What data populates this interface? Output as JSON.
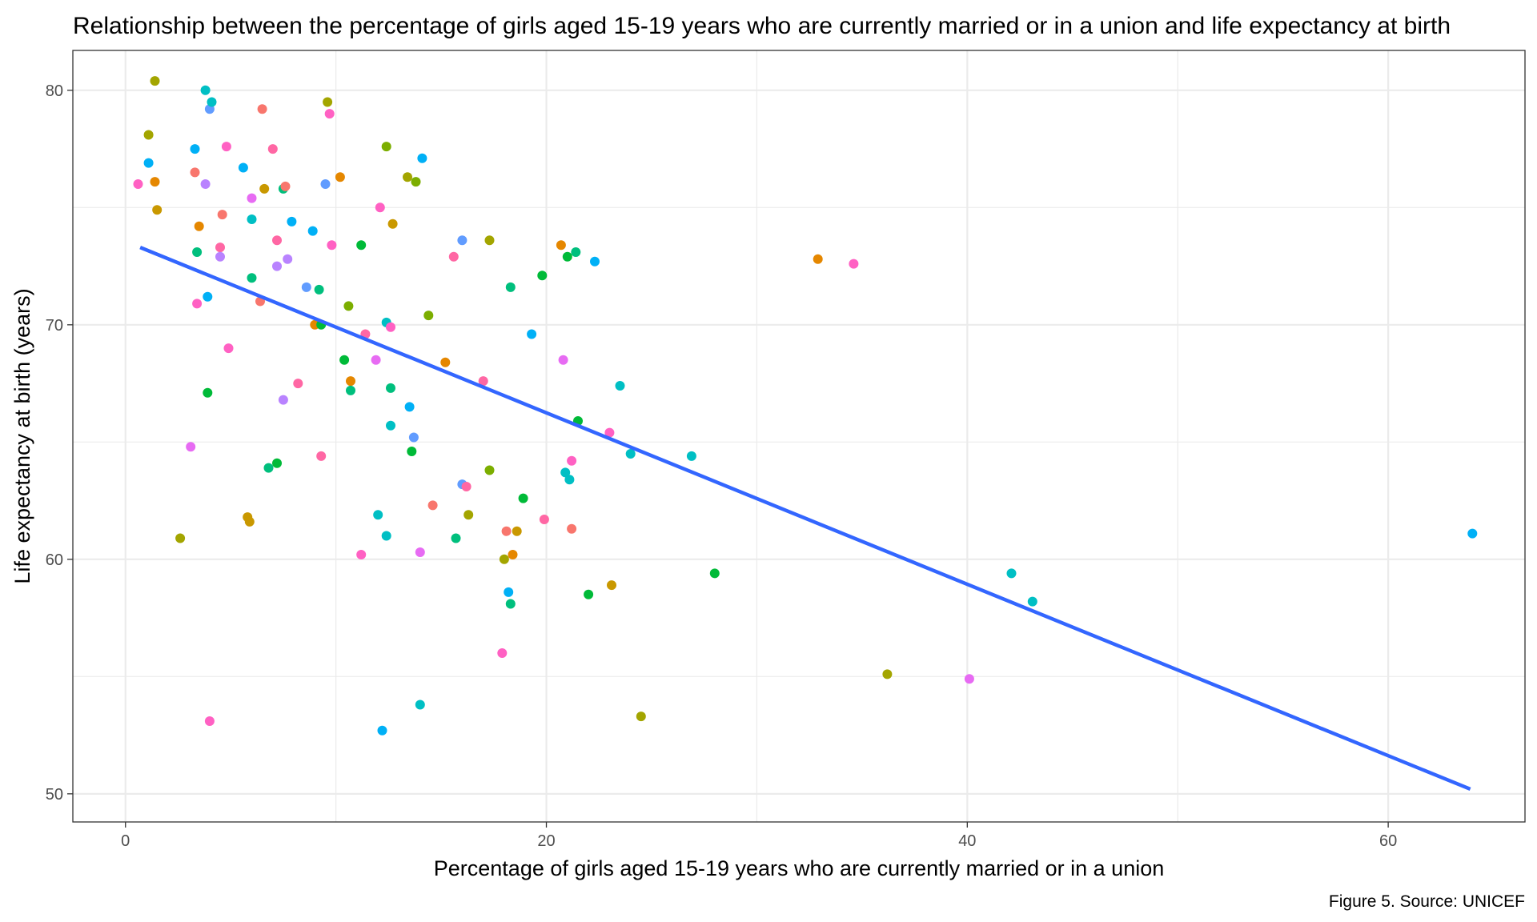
{
  "chart_data": {
    "type": "scatter",
    "title": "Relationship between the percentage of girls aged 15-19 years who are currently married or in a union and life expectancy at birth",
    "xlabel": "Percentage of girls aged 15-19 years who are currently married or in a union",
    "ylabel": "Life expectancy at birth (years)",
    "caption": "Figure 5. Source: UNICEF",
    "xlim": [
      -2.5,
      66.5
    ],
    "ylim": [
      48.8,
      81.7
    ],
    "x_ticks": [
      0,
      20,
      40,
      60
    ],
    "y_ticks": [
      50,
      60,
      70,
      80
    ],
    "x_tick_labels": [
      "0",
      "20",
      "40",
      "60"
    ],
    "y_tick_labels": [
      "50",
      "60",
      "70",
      "80"
    ],
    "grid": true,
    "legend": "none",
    "trend_line": {
      "color": "#3366FF",
      "x": [
        0.7,
        63.9
      ],
      "y": [
        73.3,
        50.2
      ]
    },
    "points": [
      {
        "x": 0.6,
        "y": 76.0,
        "c": "#FF61C3"
      },
      {
        "x": 1.1,
        "y": 78.1,
        "c": "#A3A500"
      },
      {
        "x": 1.1,
        "y": 76.9,
        "c": "#00B0F6"
      },
      {
        "x": 1.4,
        "y": 80.4,
        "c": "#A3A500"
      },
      {
        "x": 1.4,
        "y": 76.1,
        "c": "#E58700"
      },
      {
        "x": 1.5,
        "y": 74.9,
        "c": "#C99800"
      },
      {
        "x": 2.6,
        "y": 60.9,
        "c": "#A3A500"
      },
      {
        "x": 3.1,
        "y": 64.8,
        "c": "#E76BF3"
      },
      {
        "x": 3.3,
        "y": 77.5,
        "c": "#00B0F6"
      },
      {
        "x": 3.3,
        "y": 76.5,
        "c": "#F8766D"
      },
      {
        "x": 3.4,
        "y": 73.1,
        "c": "#00BF7D"
      },
      {
        "x": 3.4,
        "y": 70.9,
        "c": "#FF61C3"
      },
      {
        "x": 3.5,
        "y": 74.2,
        "c": "#E58700"
      },
      {
        "x": 3.8,
        "y": 80.0,
        "c": "#00BFC4"
      },
      {
        "x": 3.8,
        "y": 76.0,
        "c": "#B983FF"
      },
      {
        "x": 3.9,
        "y": 71.2,
        "c": "#00B0F6"
      },
      {
        "x": 3.9,
        "y": 67.1,
        "c": "#00BA38"
      },
      {
        "x": 4.0,
        "y": 79.2,
        "c": "#619CFF"
      },
      {
        "x": 4.0,
        "y": 53.1,
        "c": "#FF61C3"
      },
      {
        "x": 4.1,
        "y": 79.5,
        "c": "#00BFC4"
      },
      {
        "x": 4.5,
        "y": 73.3,
        "c": "#FF67A4"
      },
      {
        "x": 4.5,
        "y": 72.9,
        "c": "#B983FF"
      },
      {
        "x": 4.6,
        "y": 74.7,
        "c": "#F8766D"
      },
      {
        "x": 4.8,
        "y": 77.6,
        "c": "#FF61C3"
      },
      {
        "x": 4.9,
        "y": 69.0,
        "c": "#FF61C3"
      },
      {
        "x": 5.6,
        "y": 76.7,
        "c": "#00B0F6"
      },
      {
        "x": 5.8,
        "y": 61.8,
        "c": "#C99800"
      },
      {
        "x": 5.9,
        "y": 61.6,
        "c": "#C99800"
      },
      {
        "x": 6.0,
        "y": 75.4,
        "c": "#E76BF3"
      },
      {
        "x": 6.0,
        "y": 74.5,
        "c": "#00BFC4"
      },
      {
        "x": 6.0,
        "y": 72.0,
        "c": "#00BF7D"
      },
      {
        "x": 6.4,
        "y": 71.0,
        "c": "#F8766D"
      },
      {
        "x": 6.5,
        "y": 79.2,
        "c": "#F8766D"
      },
      {
        "x": 6.6,
        "y": 75.8,
        "c": "#C99800"
      },
      {
        "x": 6.8,
        "y": 63.9,
        "c": "#00BF7D"
      },
      {
        "x": 7.0,
        "y": 77.5,
        "c": "#FF67A4"
      },
      {
        "x": 7.2,
        "y": 73.6,
        "c": "#FF67A4"
      },
      {
        "x": 7.2,
        "y": 72.5,
        "c": "#B983FF"
      },
      {
        "x": 7.2,
        "y": 64.1,
        "c": "#00BA38"
      },
      {
        "x": 7.5,
        "y": 75.8,
        "c": "#00BF7D"
      },
      {
        "x": 7.5,
        "y": 66.8,
        "c": "#B983FF"
      },
      {
        "x": 7.6,
        "y": 75.9,
        "c": "#F8766D"
      },
      {
        "x": 7.7,
        "y": 72.8,
        "c": "#B983FF"
      },
      {
        "x": 7.9,
        "y": 74.4,
        "c": "#00B0F6"
      },
      {
        "x": 8.2,
        "y": 67.5,
        "c": "#FF67A4"
      },
      {
        "x": 8.6,
        "y": 71.6,
        "c": "#619CFF"
      },
      {
        "x": 8.9,
        "y": 74.0,
        "c": "#00B0F6"
      },
      {
        "x": 9.0,
        "y": 70.0,
        "c": "#E58700"
      },
      {
        "x": 9.2,
        "y": 71.5,
        "c": "#00BF7D"
      },
      {
        "x": 9.3,
        "y": 70.0,
        "c": "#00BA38"
      },
      {
        "x": 9.3,
        "y": 64.4,
        "c": "#FF67A4"
      },
      {
        "x": 9.5,
        "y": 76.0,
        "c": "#619CFF"
      },
      {
        "x": 9.6,
        "y": 79.5,
        "c": "#A3A500"
      },
      {
        "x": 9.7,
        "y": 79.0,
        "c": "#FF61C3"
      },
      {
        "x": 9.8,
        "y": 73.4,
        "c": "#FF61C3"
      },
      {
        "x": 10.2,
        "y": 76.3,
        "c": "#E58700"
      },
      {
        "x": 10.4,
        "y": 68.5,
        "c": "#00BA38"
      },
      {
        "x": 10.6,
        "y": 70.8,
        "c": "#7CAE00"
      },
      {
        "x": 10.7,
        "y": 67.6,
        "c": "#E58700"
      },
      {
        "x": 10.7,
        "y": 67.2,
        "c": "#00BF7D"
      },
      {
        "x": 11.2,
        "y": 73.4,
        "c": "#00BA38"
      },
      {
        "x": 11.2,
        "y": 60.2,
        "c": "#FF61C3"
      },
      {
        "x": 11.4,
        "y": 69.6,
        "c": "#FF67A4"
      },
      {
        "x": 11.9,
        "y": 68.5,
        "c": "#E76BF3"
      },
      {
        "x": 12.0,
        "y": 61.9,
        "c": "#00BFC4"
      },
      {
        "x": 12.1,
        "y": 75.0,
        "c": "#FF61C3"
      },
      {
        "x": 12.2,
        "y": 52.7,
        "c": "#00B0F6"
      },
      {
        "x": 12.4,
        "y": 77.6,
        "c": "#7CAE00"
      },
      {
        "x": 12.4,
        "y": 70.1,
        "c": "#00BFC4"
      },
      {
        "x": 12.4,
        "y": 61.0,
        "c": "#00BFC4"
      },
      {
        "x": 12.6,
        "y": 69.9,
        "c": "#FF61C3"
      },
      {
        "x": 12.6,
        "y": 67.3,
        "c": "#00BF7D"
      },
      {
        "x": 12.6,
        "y": 65.7,
        "c": "#00BFC4"
      },
      {
        "x": 12.7,
        "y": 74.3,
        "c": "#C99800"
      },
      {
        "x": 13.4,
        "y": 76.3,
        "c": "#A3A500"
      },
      {
        "x": 13.5,
        "y": 66.5,
        "c": "#00B0F6"
      },
      {
        "x": 13.6,
        "y": 64.6,
        "c": "#00BA38"
      },
      {
        "x": 13.7,
        "y": 65.2,
        "c": "#619CFF"
      },
      {
        "x": 13.8,
        "y": 76.1,
        "c": "#7CAE00"
      },
      {
        "x": 14.0,
        "y": 53.8,
        "c": "#00BFC4"
      },
      {
        "x": 14.0,
        "y": 60.3,
        "c": "#E76BF3"
      },
      {
        "x": 14.1,
        "y": 77.1,
        "c": "#00B0F6"
      },
      {
        "x": 14.4,
        "y": 70.4,
        "c": "#7CAE00"
      },
      {
        "x": 14.6,
        "y": 62.3,
        "c": "#F8766D"
      },
      {
        "x": 15.2,
        "y": 68.4,
        "c": "#E58700"
      },
      {
        "x": 15.6,
        "y": 72.9,
        "c": "#FF67A4"
      },
      {
        "x": 15.7,
        "y": 60.9,
        "c": "#00BF7D"
      },
      {
        "x": 16.0,
        "y": 73.6,
        "c": "#619CFF"
      },
      {
        "x": 16.0,
        "y": 63.2,
        "c": "#619CFF"
      },
      {
        "x": 16.2,
        "y": 63.1,
        "c": "#FF67A4"
      },
      {
        "x": 16.3,
        "y": 61.9,
        "c": "#A3A500"
      },
      {
        "x": 17.0,
        "y": 67.6,
        "c": "#FF67A4"
      },
      {
        "x": 17.3,
        "y": 73.6,
        "c": "#A3A500"
      },
      {
        "x": 17.3,
        "y": 63.8,
        "c": "#7CAE00"
      },
      {
        "x": 17.9,
        "y": 56.0,
        "c": "#FF61C3"
      },
      {
        "x": 18.0,
        "y": 60.0,
        "c": "#A3A500"
      },
      {
        "x": 18.1,
        "y": 61.2,
        "c": "#F8766D"
      },
      {
        "x": 18.2,
        "y": 58.6,
        "c": "#00B0F6"
      },
      {
        "x": 18.3,
        "y": 71.6,
        "c": "#00BF7D"
      },
      {
        "x": 18.3,
        "y": 58.1,
        "c": "#00BF7D"
      },
      {
        "x": 18.4,
        "y": 60.2,
        "c": "#E58700"
      },
      {
        "x": 18.6,
        "y": 61.2,
        "c": "#C99800"
      },
      {
        "x": 18.9,
        "y": 62.6,
        "c": "#00BA38"
      },
      {
        "x": 19.3,
        "y": 69.6,
        "c": "#00B0F6"
      },
      {
        "x": 19.8,
        "y": 72.1,
        "c": "#00BA38"
      },
      {
        "x": 19.9,
        "y": 61.7,
        "c": "#FF67A4"
      },
      {
        "x": 20.7,
        "y": 73.4,
        "c": "#E58700"
      },
      {
        "x": 20.8,
        "y": 68.5,
        "c": "#E76BF3"
      },
      {
        "x": 20.9,
        "y": 63.7,
        "c": "#00BFC4"
      },
      {
        "x": 21.0,
        "y": 72.9,
        "c": "#00BA38"
      },
      {
        "x": 21.1,
        "y": 63.4,
        "c": "#00BFC4"
      },
      {
        "x": 21.2,
        "y": 64.2,
        "c": "#FF61C3"
      },
      {
        "x": 21.2,
        "y": 61.3,
        "c": "#F8766D"
      },
      {
        "x": 21.4,
        "y": 73.1,
        "c": "#00BF7D"
      },
      {
        "x": 21.5,
        "y": 65.9,
        "c": "#00BA38"
      },
      {
        "x": 22.0,
        "y": 58.5,
        "c": "#00BA38"
      },
      {
        "x": 22.3,
        "y": 72.7,
        "c": "#00B0F6"
      },
      {
        "x": 23.0,
        "y": 65.4,
        "c": "#FF61C3"
      },
      {
        "x": 23.1,
        "y": 58.9,
        "c": "#C99800"
      },
      {
        "x": 23.5,
        "y": 67.4,
        "c": "#00BFC4"
      },
      {
        "x": 24.0,
        "y": 64.5,
        "c": "#00BFC4"
      },
      {
        "x": 24.5,
        "y": 53.3,
        "c": "#A3A500"
      },
      {
        "x": 26.9,
        "y": 64.4,
        "c": "#00BFC4"
      },
      {
        "x": 28.0,
        "y": 59.4,
        "c": "#00BA38"
      },
      {
        "x": 32.9,
        "y": 72.8,
        "c": "#E58700"
      },
      {
        "x": 34.6,
        "y": 72.6,
        "c": "#FF61C3"
      },
      {
        "x": 36.2,
        "y": 55.1,
        "c": "#A3A500"
      },
      {
        "x": 40.1,
        "y": 54.9,
        "c": "#E76BF3"
      },
      {
        "x": 42.1,
        "y": 59.4,
        "c": "#00BFC4"
      },
      {
        "x": 43.1,
        "y": 58.2,
        "c": "#00BFC4"
      },
      {
        "x": 64.0,
        "y": 61.1,
        "c": "#00B0F6"
      }
    ]
  }
}
